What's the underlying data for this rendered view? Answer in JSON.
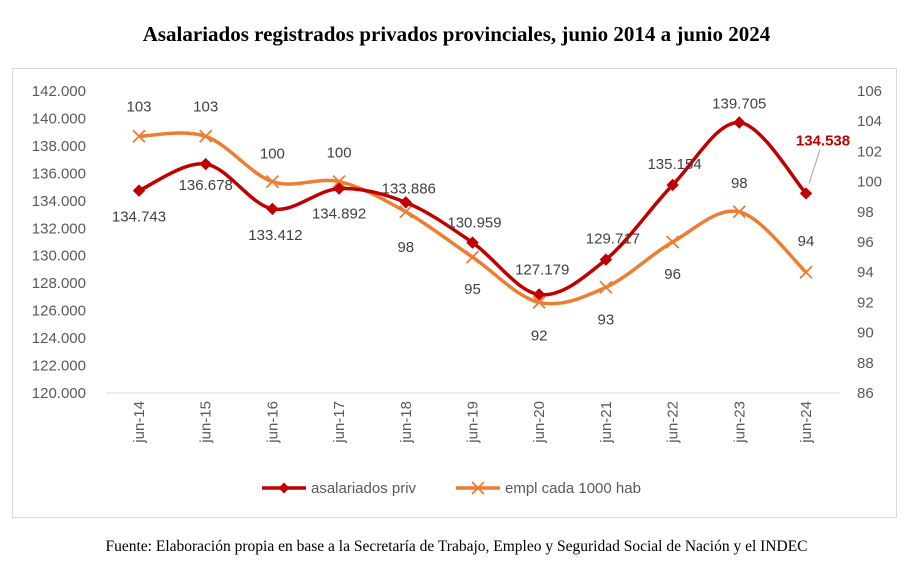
{
  "title": "Asalariados registrados privados provinciales, junio 2014 a junio 2024",
  "source": "Fuente: Elaboración propia en base a la Secretaría de Trabajo, Empleo y Seguridad Social de Nación y el INDEC",
  "colors": {
    "series1": "#c00000",
    "series2": "#ed7d31",
    "axis_text": "#595959",
    "label_text": "#404040"
  },
  "chart_data": {
    "type": "line",
    "categories": [
      "jun-14",
      "jun-15",
      "jun-16",
      "jun-17",
      "jun-18",
      "jun-19",
      "jun-20",
      "jun-21",
      "jun-22",
      "jun-23",
      "jun-24"
    ],
    "y_left": {
      "ylim": [
        120000,
        142000
      ],
      "ticks": [
        120000,
        122000,
        124000,
        126000,
        128000,
        130000,
        132000,
        134000,
        136000,
        138000,
        140000,
        142000
      ],
      "tick_labels": [
        "120.000",
        "122.000",
        "124.000",
        "126.000",
        "128.000",
        "130.000",
        "132.000",
        "134.000",
        "136.000",
        "138.000",
        "140.000",
        "142.000"
      ]
    },
    "y_right": {
      "ylim": [
        86,
        106
      ],
      "ticks": [
        86,
        88,
        90,
        92,
        94,
        96,
        98,
        100,
        102,
        104,
        106
      ],
      "tick_labels": [
        "86",
        "88",
        "90",
        "92",
        "94",
        "96",
        "98",
        "100",
        "102",
        "104",
        "106"
      ]
    },
    "series": [
      {
        "name": "asalariados priv",
        "axis": "left",
        "marker": "diamond",
        "values": [
          134743,
          136678,
          133412,
          134892,
          133886,
          130959,
          127179,
          129717,
          135154,
          139705,
          134538
        ],
        "labels": [
          "134.743",
          "136.678",
          "133.412",
          "134.892",
          "133.886",
          "130.959",
          "127.179",
          "129.717",
          "135.154",
          "139.705",
          "134.538"
        ]
      },
      {
        "name": "empl cada 1000 hab",
        "axis": "right",
        "marker": "x",
        "values": [
          103,
          103,
          100,
          100,
          98,
          95,
          92,
          93,
          96,
          98,
          94
        ],
        "labels": [
          "103",
          "103",
          "100",
          "100",
          "98",
          "95",
          "92",
          "93",
          "96",
          "98",
          "94"
        ]
      }
    ],
    "legend_position": "bottom",
    "grid": false
  }
}
